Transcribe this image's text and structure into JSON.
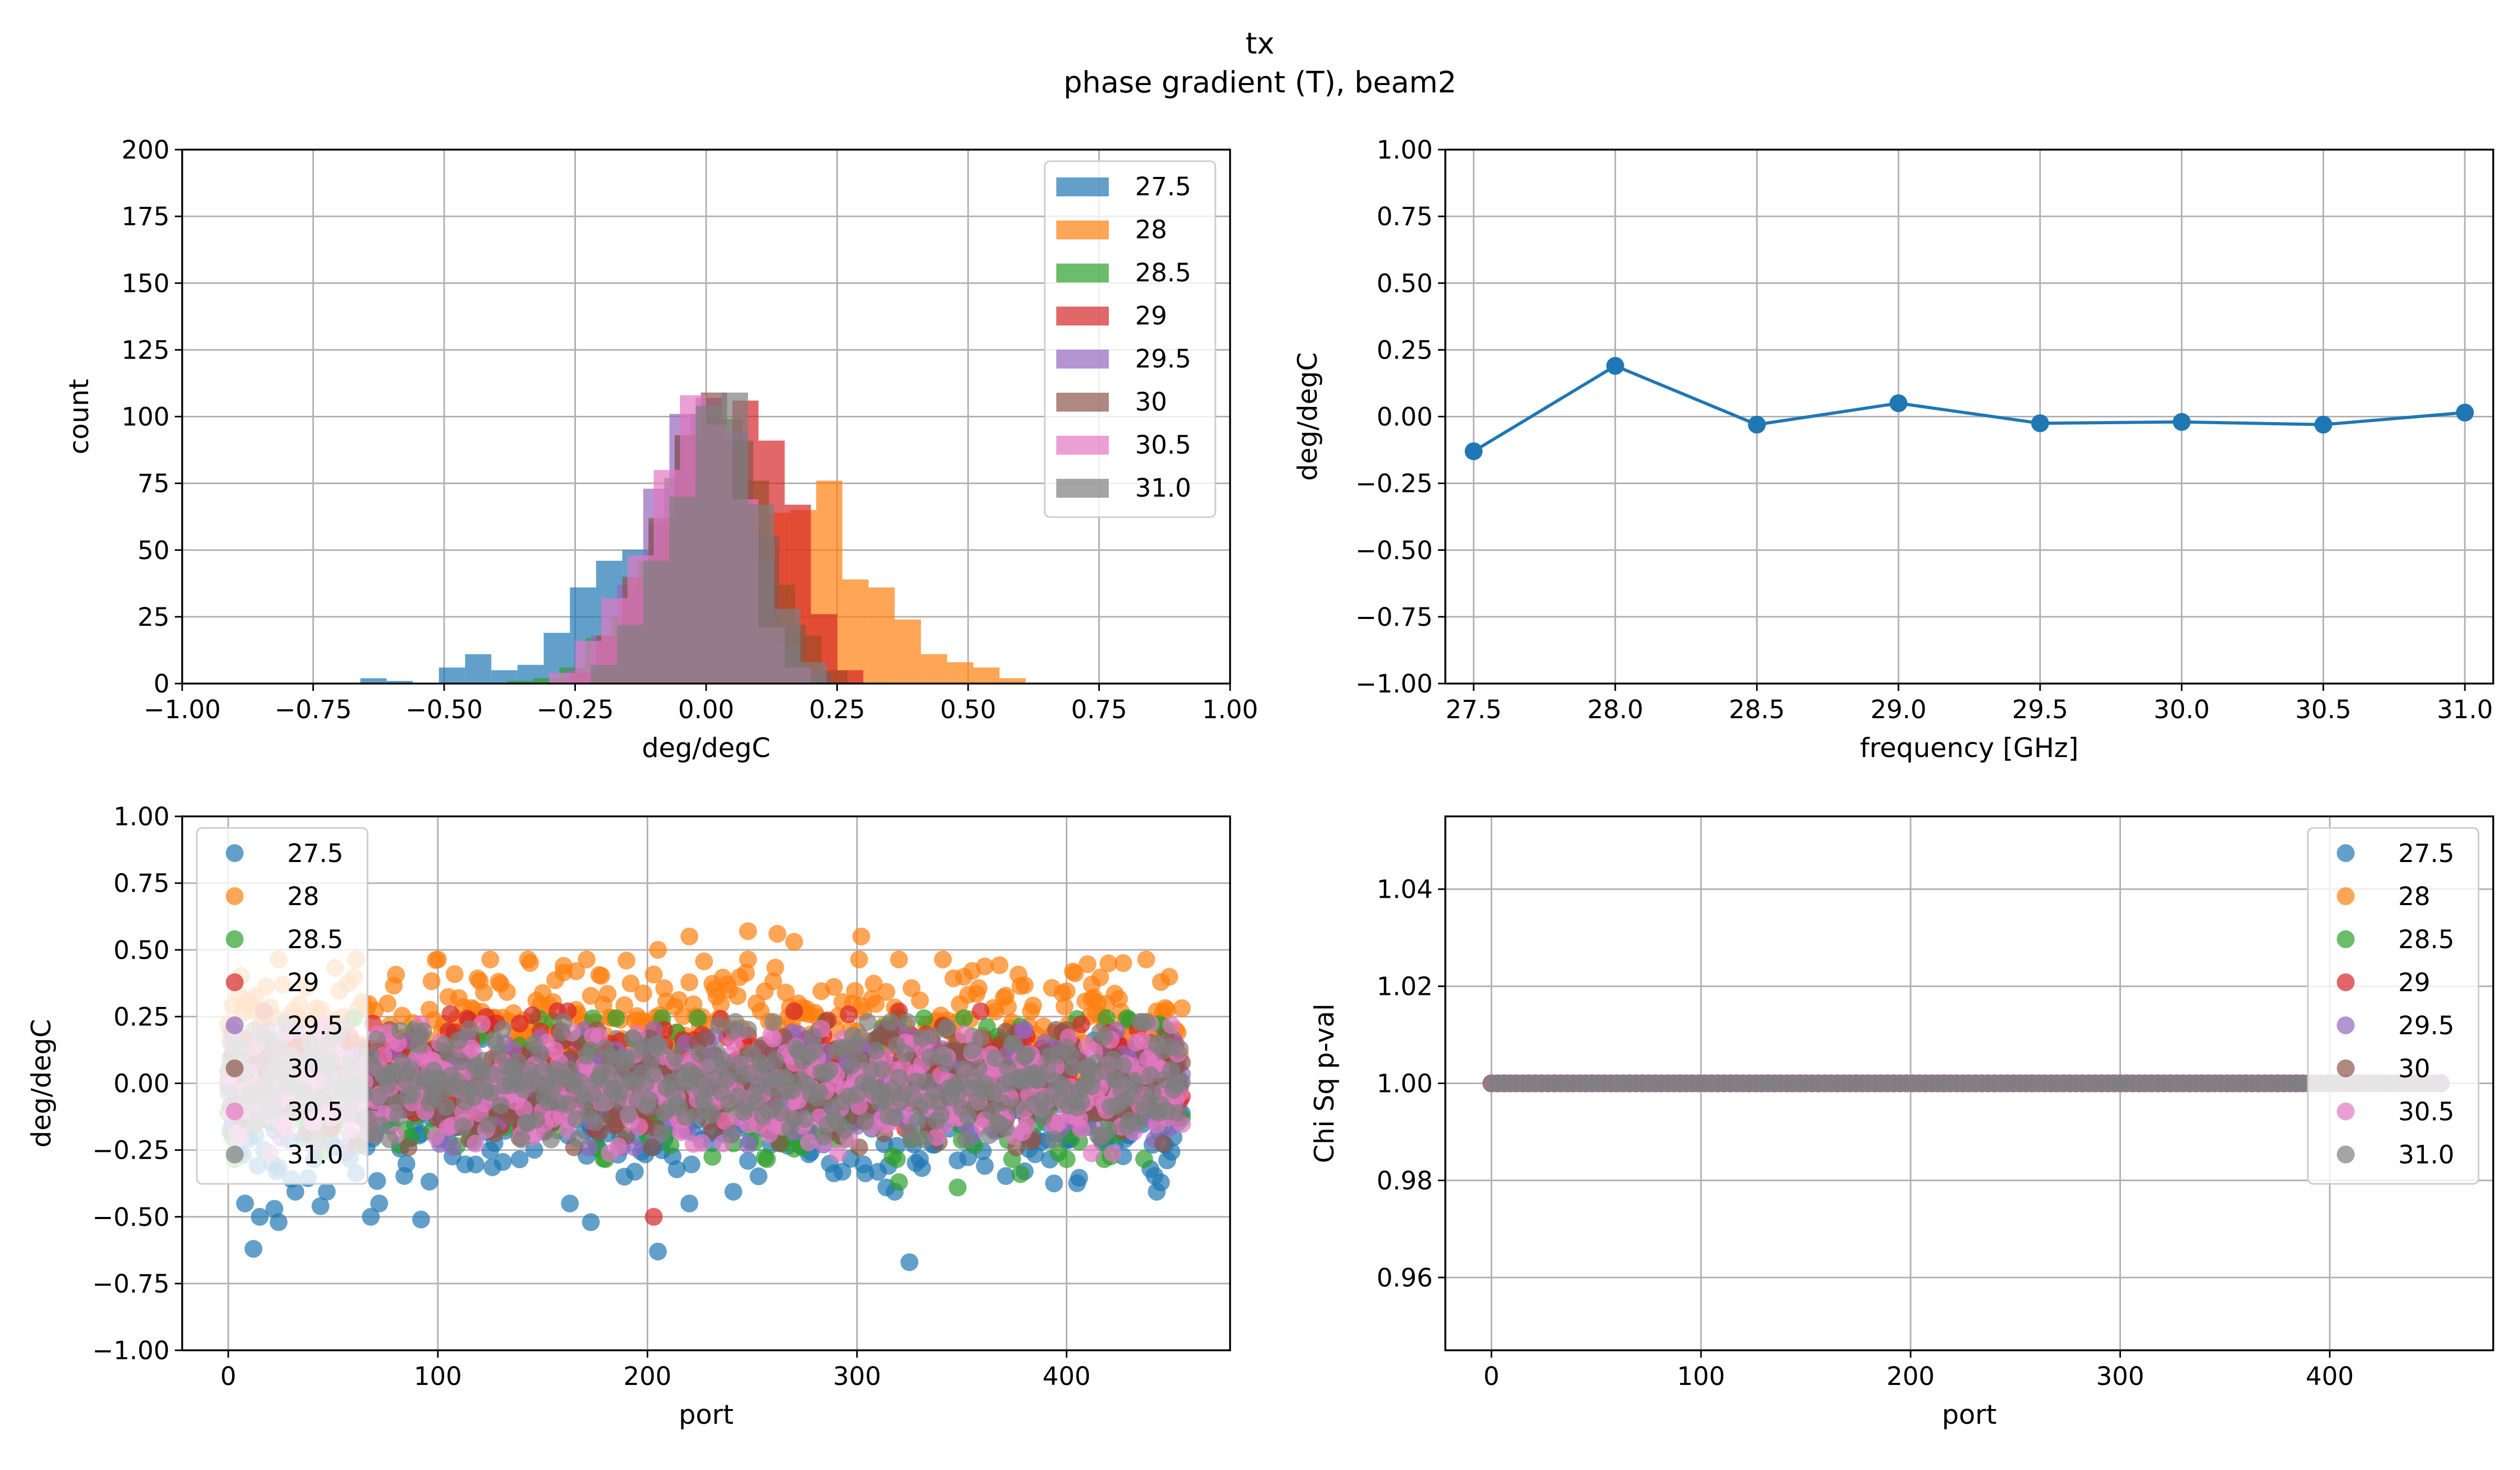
{
  "figure": {
    "suptitle_line1": "tx",
    "suptitle_line2": "phase gradient (T), beam2"
  },
  "colors": {
    "series": [
      "#1f77b4",
      "#ff7f0e",
      "#2ca02c",
      "#d62728",
      "#9467bd",
      "#8c564b",
      "#e377c2",
      "#7f7f7f"
    ],
    "grid": "#b0b0b0"
  },
  "chart_data": [
    {
      "id": "hist",
      "type": "bar",
      "subtype": "overlaid-histogram",
      "xlabel": "deg/degC",
      "ylabel": "count",
      "xlim": [
        -1.0,
        1.0
      ],
      "ylim": [
        0,
        200
      ],
      "xticks": [
        "−1.00",
        "−0.75",
        "−0.50",
        "−0.25",
        "0.00",
        "0.25",
        "0.50",
        "0.75",
        "1.00"
      ],
      "yticks": [
        "0",
        "25",
        "50",
        "75",
        "100",
        "125",
        "150",
        "175",
        "200"
      ],
      "grid": true,
      "legend_loc": "upper right",
      "alpha": 0.7,
      "series": [
        {
          "name": "27.5",
          "bins": [
            [
              -0.66,
              -0.61,
              2
            ],
            [
              -0.61,
              -0.56,
              1
            ],
            [
              -0.51,
              -0.46,
              6
            ],
            [
              -0.46,
              -0.41,
              11
            ],
            [
              -0.41,
              -0.36,
              5
            ],
            [
              -0.36,
              -0.31,
              7
            ],
            [
              -0.31,
              -0.26,
              19
            ],
            [
              -0.26,
              -0.21,
              36
            ],
            [
              -0.21,
              -0.16,
              46
            ],
            [
              -0.16,
              -0.11,
              50
            ],
            [
              -0.11,
              -0.06,
              60
            ],
            [
              -0.06,
              -0.01,
              93
            ],
            [
              -0.01,
              0.04,
              82
            ],
            [
              0.04,
              0.09,
              37
            ],
            [
              0.09,
              0.14,
              7
            ]
          ]
        },
        {
          "name": "28",
          "bins": [
            [
              -0.14,
              -0.09,
              2
            ],
            [
              -0.09,
              -0.04,
              17
            ],
            [
              -0.04,
              0.01,
              35
            ],
            [
              0.01,
              0.06,
              46
            ],
            [
              0.06,
              0.11,
              58
            ],
            [
              0.11,
              0.16,
              64
            ],
            [
              0.16,
              0.21,
              65
            ],
            [
              0.21,
              0.26,
              76
            ],
            [
              0.26,
              0.31,
              39
            ],
            [
              0.31,
              0.36,
              36
            ],
            [
              0.36,
              0.41,
              24
            ],
            [
              0.41,
              0.46,
              11
            ],
            [
              0.46,
              0.51,
              8
            ],
            [
              0.51,
              0.56,
              6
            ],
            [
              0.56,
              0.61,
              2
            ]
          ]
        },
        {
          "name": "28.5",
          "bins": [
            [
              -0.38,
              -0.33,
              1
            ],
            [
              -0.33,
              -0.28,
              2
            ],
            [
              -0.28,
              -0.23,
              6
            ],
            [
              -0.23,
              -0.18,
              17
            ],
            [
              -0.18,
              -0.13,
              25
            ],
            [
              -0.13,
              -0.08,
              46
            ],
            [
              -0.08,
              -0.03,
              77
            ],
            [
              -0.03,
              0.02,
              101
            ],
            [
              0.02,
              0.07,
              99
            ],
            [
              0.07,
              0.12,
              76
            ],
            [
              0.12,
              0.17,
              37
            ],
            [
              0.17,
              0.22,
              18
            ],
            [
              0.22,
              0.27,
              5
            ]
          ]
        },
        {
          "name": "29",
          "bins": [
            [
              -0.2,
              -0.15,
              4
            ],
            [
              -0.15,
              -0.1,
              17
            ],
            [
              -0.1,
              -0.05,
              36
            ],
            [
              -0.05,
              0.0,
              56
            ],
            [
              0.0,
              0.05,
              92
            ],
            [
              0.05,
              0.1,
              106
            ],
            [
              0.1,
              0.15,
              91
            ],
            [
              0.15,
              0.2,
              67
            ],
            [
              0.2,
              0.25,
              26
            ],
            [
              0.25,
              0.3,
              5
            ]
          ]
        },
        {
          "name": "29.5",
          "bins": [
            [
              -0.27,
              -0.22,
              5
            ],
            [
              -0.22,
              -0.17,
              18
            ],
            [
              -0.17,
              -0.12,
              37
            ],
            [
              -0.12,
              -0.07,
              73
            ],
            [
              -0.07,
              -0.02,
              101
            ],
            [
              -0.02,
              0.03,
              107
            ],
            [
              0.03,
              0.08,
              94
            ],
            [
              0.08,
              0.13,
              46
            ],
            [
              0.13,
              0.18,
              14
            ],
            [
              0.18,
              0.23,
              3
            ]
          ]
        },
        {
          "name": "30",
          "bins": [
            [
              -0.26,
              -0.21,
              4
            ],
            [
              -0.21,
              -0.16,
              18
            ],
            [
              -0.16,
              -0.11,
              40
            ],
            [
              -0.11,
              -0.06,
              62
            ],
            [
              -0.06,
              -0.01,
              93
            ],
            [
              -0.01,
              0.04,
              109
            ],
            [
              0.04,
              0.09,
              91
            ],
            [
              0.09,
              0.14,
              55
            ],
            [
              0.14,
              0.19,
              22
            ],
            [
              0.19,
              0.24,
              4
            ]
          ]
        },
        {
          "name": "30.5",
          "bins": [
            [
              -0.3,
              -0.25,
              4
            ],
            [
              -0.25,
              -0.2,
              16
            ],
            [
              -0.2,
              -0.15,
              32
            ],
            [
              -0.15,
              -0.1,
              48
            ],
            [
              -0.1,
              -0.05,
              80
            ],
            [
              -0.05,
              0.0,
              108
            ],
            [
              0.0,
              0.05,
              97
            ],
            [
              0.05,
              0.1,
              69
            ],
            [
              0.1,
              0.15,
              21
            ],
            [
              0.15,
              0.2,
              6
            ]
          ]
        },
        {
          "name": "31.0",
          "bins": [
            [
              -0.22,
              -0.17,
              7
            ],
            [
              -0.17,
              -0.12,
              22
            ],
            [
              -0.12,
              -0.07,
              46
            ],
            [
              -0.07,
              -0.02,
              70
            ],
            [
              -0.02,
              0.03,
              104
            ],
            [
              0.03,
              0.08,
              109
            ],
            [
              0.08,
              0.13,
              67
            ],
            [
              0.13,
              0.18,
              28
            ],
            [
              0.18,
              0.23,
              8
            ]
          ]
        }
      ]
    },
    {
      "id": "freq",
      "type": "line",
      "xlabel": "frequency [GHz]",
      "ylabel": "deg/degC",
      "xlim": [
        27.4,
        31.1
      ],
      "ylim": [
        -1.0,
        1.0
      ],
      "xticks": [
        "27.5",
        "28.0",
        "28.5",
        "29.0",
        "29.5",
        "30.0",
        "30.5",
        "31.0"
      ],
      "yticks": [
        "−1.00",
        "−0.75",
        "−0.50",
        "−0.25",
        "0.00",
        "0.25",
        "0.50",
        "0.75",
        "1.00"
      ],
      "grid": true,
      "x": [
        27.5,
        28.0,
        28.5,
        29.0,
        29.5,
        30.0,
        30.5,
        31.0
      ],
      "values": [
        -0.13,
        0.19,
        -0.03,
        0.05,
        -0.025,
        -0.02,
        -0.03,
        0.015
      ]
    },
    {
      "id": "port",
      "type": "scatter",
      "xlabel": "port",
      "ylabel": "deg/degC",
      "xlim": [
        -22,
        478
      ],
      "ylim": [
        -1.0,
        1.0
      ],
      "xticks": [
        "0",
        "100",
        "200",
        "300",
        "400"
      ],
      "yticks": [
        "−1.00",
        "−0.75",
        "−0.50",
        "−0.25",
        "0.00",
        "0.25",
        "0.50",
        "0.75",
        "1.00"
      ],
      "grid": true,
      "legend_loc": "upper left",
      "n_points_per_series": 456,
      "series": [
        {
          "name": "27.5",
          "mean": -0.12,
          "spread": 0.13,
          "outliers": [
            [
              8,
              -0.45
            ],
            [
              12,
              -0.62
            ],
            [
              15,
              -0.5
            ],
            [
              22,
              -0.47
            ],
            [
              24,
              -0.52
            ],
            [
              44,
              -0.46
            ],
            [
              68,
              -0.5
            ],
            [
              72,
              -0.45
            ],
            [
              92,
              -0.51
            ],
            [
              163,
              -0.45
            ],
            [
              173,
              -0.52
            ],
            [
              205,
              -0.63
            ],
            [
              220,
              -0.45
            ],
            [
              325,
              -0.67
            ]
          ]
        },
        {
          "name": "28",
          "mean": 0.2,
          "spread": 0.12,
          "outliers": [
            [
              160,
              0.44
            ],
            [
              166,
              0.42
            ],
            [
              205,
              0.5
            ],
            [
              220,
              0.55
            ],
            [
              248,
              0.57
            ],
            [
              262,
              0.56
            ],
            [
              270,
              0.53
            ],
            [
              302,
              0.55
            ],
            [
              412,
              0.37
            ]
          ]
        },
        {
          "name": "28.5",
          "mean": -0.02,
          "spread": 0.12,
          "outliers": [
            [
              320,
              -0.37
            ],
            [
              348,
              -0.39
            ],
            [
              378,
              -0.34
            ]
          ]
        },
        {
          "name": "29",
          "mean": 0.05,
          "spread": 0.1,
          "outliers": [
            [
              203,
              -0.5
            ],
            [
              208,
              0.2
            ]
          ]
        },
        {
          "name": "29.5",
          "mean": -0.02,
          "spread": 0.1,
          "outliers": []
        },
        {
          "name": "30",
          "mean": -0.02,
          "spread": 0.1,
          "outliers": []
        },
        {
          "name": "30.5",
          "mean": -0.02,
          "spread": 0.11,
          "outliers": []
        },
        {
          "name": "31.0",
          "mean": 0.01,
          "spread": 0.1,
          "outliers": []
        }
      ]
    },
    {
      "id": "chisq",
      "type": "scatter",
      "xlabel": "port",
      "ylabel": "Chi Sq p-val",
      "xlim": [
        -22,
        478
      ],
      "ylim": [
        0.945,
        1.055
      ],
      "xticks": [
        "0",
        "100",
        "200",
        "300",
        "400"
      ],
      "yticks": [
        "0.96",
        "0.98",
        "1.00",
        "1.02",
        "1.04"
      ],
      "grid": true,
      "legend_loc": "upper right",
      "n_points_per_series": 456,
      "series_names": [
        "27.5",
        "28",
        "28.5",
        "29",
        "29.5",
        "30",
        "30.5",
        "31.0"
      ],
      "value": 1.0
    }
  ]
}
